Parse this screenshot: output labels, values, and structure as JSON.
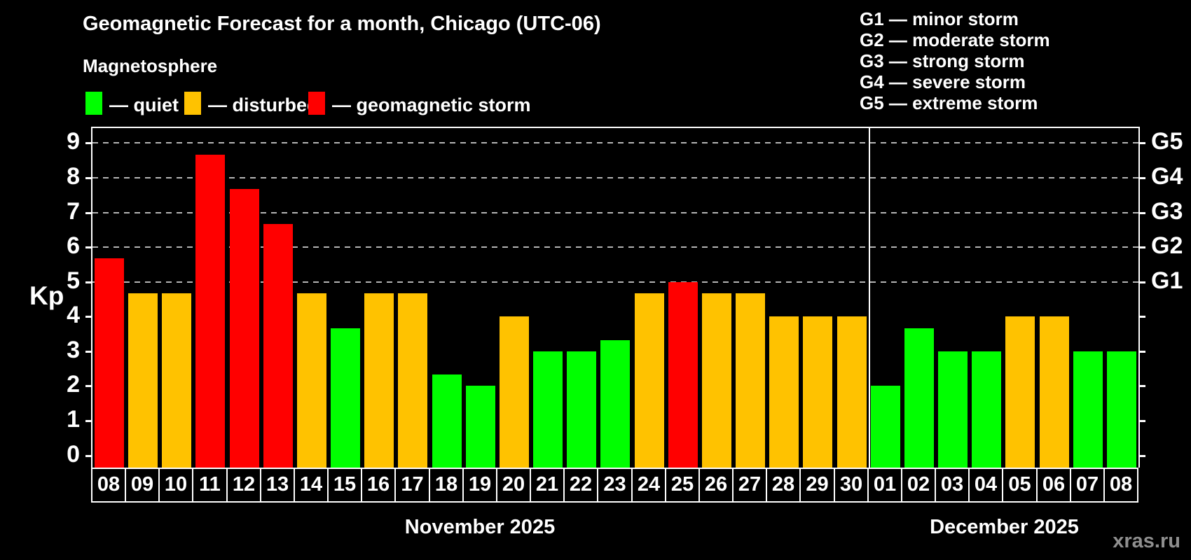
{
  "title": "Geomagnetic Forecast for a month, Chicago (UTC-06)",
  "subtitle": "Magnetosphere",
  "legend": {
    "quiet_label": "— quiet",
    "disturbed_label": "— disturbed",
    "storm_label": "— geomagnetic storm"
  },
  "g_legend": {
    "lines": [
      "G1 — minor storm",
      "G2 — moderate storm",
      "G3 — strong storm",
      "G4 — severe storm",
      "G5 — extreme storm"
    ]
  },
  "watermark": "xras.ru",
  "colors": {
    "quiet": "#00ff00",
    "disturbed": "#ffc200",
    "storm": "#ff0000",
    "background": "#000000",
    "grid": "#b5b5b5",
    "axis": "#ffffff",
    "watermark": "#8f8f8f"
  },
  "chart_data": {
    "type": "bar",
    "ylabel": "Kp",
    "ylim": [
      -0.35,
      9.43
    ],
    "yticks": [
      0,
      1,
      2,
      3,
      4,
      5,
      6,
      7,
      8,
      9
    ],
    "gridlines": [
      5,
      6,
      7,
      8,
      9
    ],
    "grid_style": "dashed",
    "legend_position": "top-left",
    "right_axis": [
      {
        "value": 5,
        "label": "G1"
      },
      {
        "value": 6,
        "label": "G2"
      },
      {
        "value": 7,
        "label": "G3"
      },
      {
        "value": 8,
        "label": "G4"
      },
      {
        "value": 9,
        "label": "G5"
      }
    ],
    "months": [
      {
        "label": "November 2025",
        "days": [
          {
            "day": "08",
            "kp": 5.67,
            "level": "storm"
          },
          {
            "day": "09",
            "kp": 4.67,
            "level": "disturbed"
          },
          {
            "day": "10",
            "kp": 4.67,
            "level": "disturbed"
          },
          {
            "day": "11",
            "kp": 8.67,
            "level": "storm"
          },
          {
            "day": "12",
            "kp": 7.67,
            "level": "storm"
          },
          {
            "day": "13",
            "kp": 6.67,
            "level": "storm"
          },
          {
            "day": "14",
            "kp": 4.67,
            "level": "disturbed"
          },
          {
            "day": "15",
            "kp": 3.67,
            "level": "quiet"
          },
          {
            "day": "16",
            "kp": 4.67,
            "level": "disturbed"
          },
          {
            "day": "17",
            "kp": 4.67,
            "level": "disturbed"
          },
          {
            "day": "18",
            "kp": 2.33,
            "level": "quiet"
          },
          {
            "day": "19",
            "kp": 2.0,
            "level": "quiet"
          },
          {
            "day": "20",
            "kp": 4.0,
            "level": "disturbed"
          },
          {
            "day": "21",
            "kp": 3.0,
            "level": "quiet"
          },
          {
            "day": "22",
            "kp": 3.0,
            "level": "quiet"
          },
          {
            "day": "23",
            "kp": 3.33,
            "level": "quiet"
          },
          {
            "day": "24",
            "kp": 4.67,
            "level": "disturbed"
          },
          {
            "day": "25",
            "kp": 5.0,
            "level": "storm"
          },
          {
            "day": "26",
            "kp": 4.67,
            "level": "disturbed"
          },
          {
            "day": "27",
            "kp": 4.67,
            "level": "disturbed"
          },
          {
            "day": "28",
            "kp": 4.0,
            "level": "disturbed"
          },
          {
            "day": "29",
            "kp": 4.0,
            "level": "disturbed"
          },
          {
            "day": "30",
            "kp": 4.0,
            "level": "disturbed"
          }
        ]
      },
      {
        "label": "December 2025",
        "days": [
          {
            "day": "01",
            "kp": 2.0,
            "level": "quiet"
          },
          {
            "day": "02",
            "kp": 3.67,
            "level": "quiet"
          },
          {
            "day": "03",
            "kp": 3.0,
            "level": "quiet"
          },
          {
            "day": "04",
            "kp": 3.0,
            "level": "quiet"
          },
          {
            "day": "05",
            "kp": 4.0,
            "level": "disturbed"
          },
          {
            "day": "06",
            "kp": 4.0,
            "level": "disturbed"
          },
          {
            "day": "07",
            "kp": 3.0,
            "level": "quiet"
          },
          {
            "day": "08",
            "kp": 3.0,
            "level": "quiet"
          }
        ]
      }
    ]
  }
}
